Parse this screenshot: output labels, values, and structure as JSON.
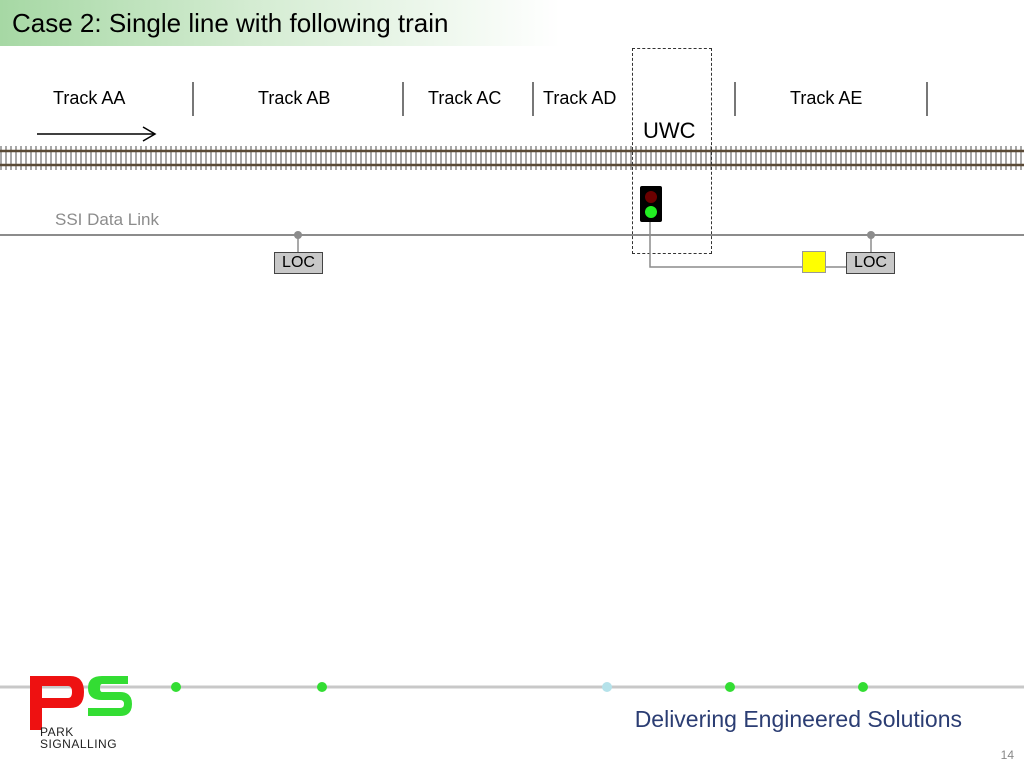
{
  "title": "Case 2: Single line with following train",
  "tracks": [
    "Track AA",
    "Track AB",
    "Track AC",
    "Track AD",
    "Track AE"
  ],
  "uwc_label": "UWC",
  "ssi_label": "SSI Data Link",
  "loc_labels": [
    "LOC",
    "LOC"
  ],
  "signal": {
    "top_lamp": "red",
    "bottom_lamp": "green"
  },
  "colors": {
    "title_gradient": "#a6d8a4",
    "rail": "#5a4a36",
    "sleeper": "#7a7a7a",
    "ssi_link": "#8c8c8c",
    "signal_red": "#6b0000",
    "signal_green": "#22ee22",
    "yellow_box": "#ffff00",
    "footer_line": "#c8c8c8",
    "footer_dot": "#33dd33",
    "footer_dot_alt": "#b5e2ea",
    "tagline": "#2b3d73",
    "logo_red": "#ee1111",
    "logo_green": "#33dd33"
  },
  "footer": {
    "tagline": "Delivering Engineered Solutions",
    "page_number": "14",
    "logo_line1": "PARK",
    "logo_line2": "SIGNALLING"
  }
}
